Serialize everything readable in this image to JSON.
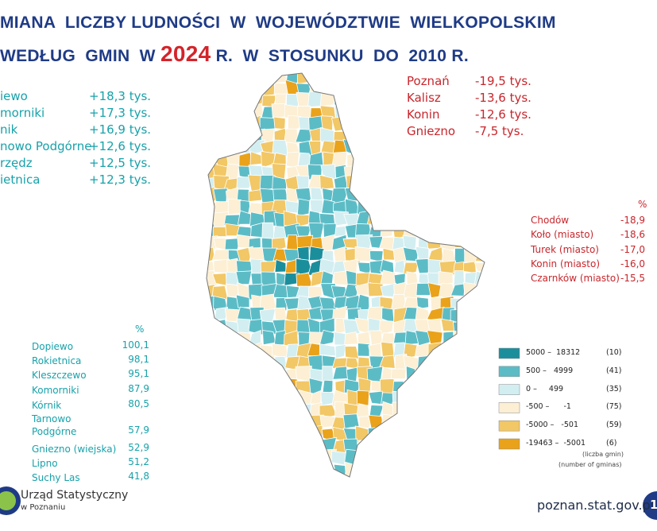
{
  "header": {
    "title_line1": "MIANA  LICZBY LUDNOŚCI  W  WOJEWÓDZTWIE  WIELKOPOLSKIM",
    "title_line2_start": "WEDŁUG  GMIN  W",
    "title_year": "2024",
    "title_line2_end": "R.  W  STOSUNKU  DO  2010 R."
  },
  "gains_abs": [
    {
      "name": "iewo",
      "value": "+18,3 tys."
    },
    {
      "name": "morniki",
      "value": "+17,3 tys."
    },
    {
      "name": "nik",
      "value": "+16,9 tys."
    },
    {
      "name": "nowo Podgórne",
      "value": "+12,6 tys."
    },
    {
      "name": "rzędz",
      "value": "+12,5 tys."
    },
    {
      "name": "ietnica",
      "value": "+12,3 tys."
    }
  ],
  "losses_abs": [
    {
      "name": "Poznań",
      "value": "-19,5 tys."
    },
    {
      "name": "Kalisz",
      "value": "-13,6 tys."
    },
    {
      "name": "Konin",
      "value": "-12,6 tys."
    },
    {
      "name": "Gniezno",
      "value": "-7,5 tys."
    }
  ],
  "losses_pct": {
    "unit": "%",
    "items": [
      {
        "name": "Chodów",
        "value": "-18,9"
      },
      {
        "name": "Koło (miasto)",
        "value": "-18,6"
      },
      {
        "name": "Turek (miasto)",
        "value": "-17,0"
      },
      {
        "name": "Konin (miasto)",
        "value": "-16,0"
      },
      {
        "name": "Czarnków (miasto)",
        "value": "-15,5"
      }
    ]
  },
  "gains_pct": {
    "unit": "%",
    "items": [
      {
        "name": "Dopiewo",
        "value": "100,1"
      },
      {
        "name": "Rokietnica",
        "value": "98,1"
      },
      {
        "name": "Kleszczewo",
        "value": "95,1"
      },
      {
        "name": "Komorniki",
        "value": "87,9"
      },
      {
        "name": "Kórnik",
        "value": "80,5"
      },
      {
        "name": "Tarnowo\nPodgórne",
        "value": "57,9"
      },
      {
        "name": "Gniezno (wiejska)",
        "value": "52,9"
      },
      {
        "name": "Lipno",
        "value": "51,2"
      },
      {
        "name": "Suchy Las",
        "value": "41,8"
      }
    ]
  },
  "legend": {
    "items": [
      {
        "range": "5000 –  18312",
        "count": "(10)",
        "color": "#1b8e9c"
      },
      {
        "range": "500 –   4999",
        "count": "(41)",
        "color": "#5cbcc6"
      },
      {
        "range": "0 –     499",
        "count": "(35)",
        "color": "#d3eef1"
      },
      {
        "range": "-500 –      -1",
        "count": "(75)",
        "color": "#fcefd3"
      },
      {
        "range": "-5000 –   -501",
        "count": "(59)",
        "color": "#f2c765"
      },
      {
        "range": "-19463 –  -5001",
        "count": "(6)",
        "color": "#e9a21a"
      }
    ],
    "note_pl": "(liczba gmin)",
    "note_en": "(number of gminas)"
  },
  "footer": {
    "org": "Urząd Statystyczny",
    "org_sub": "w Poznaniu",
    "url": "poznan.stat.gov.pl",
    "page": "1"
  }
}
